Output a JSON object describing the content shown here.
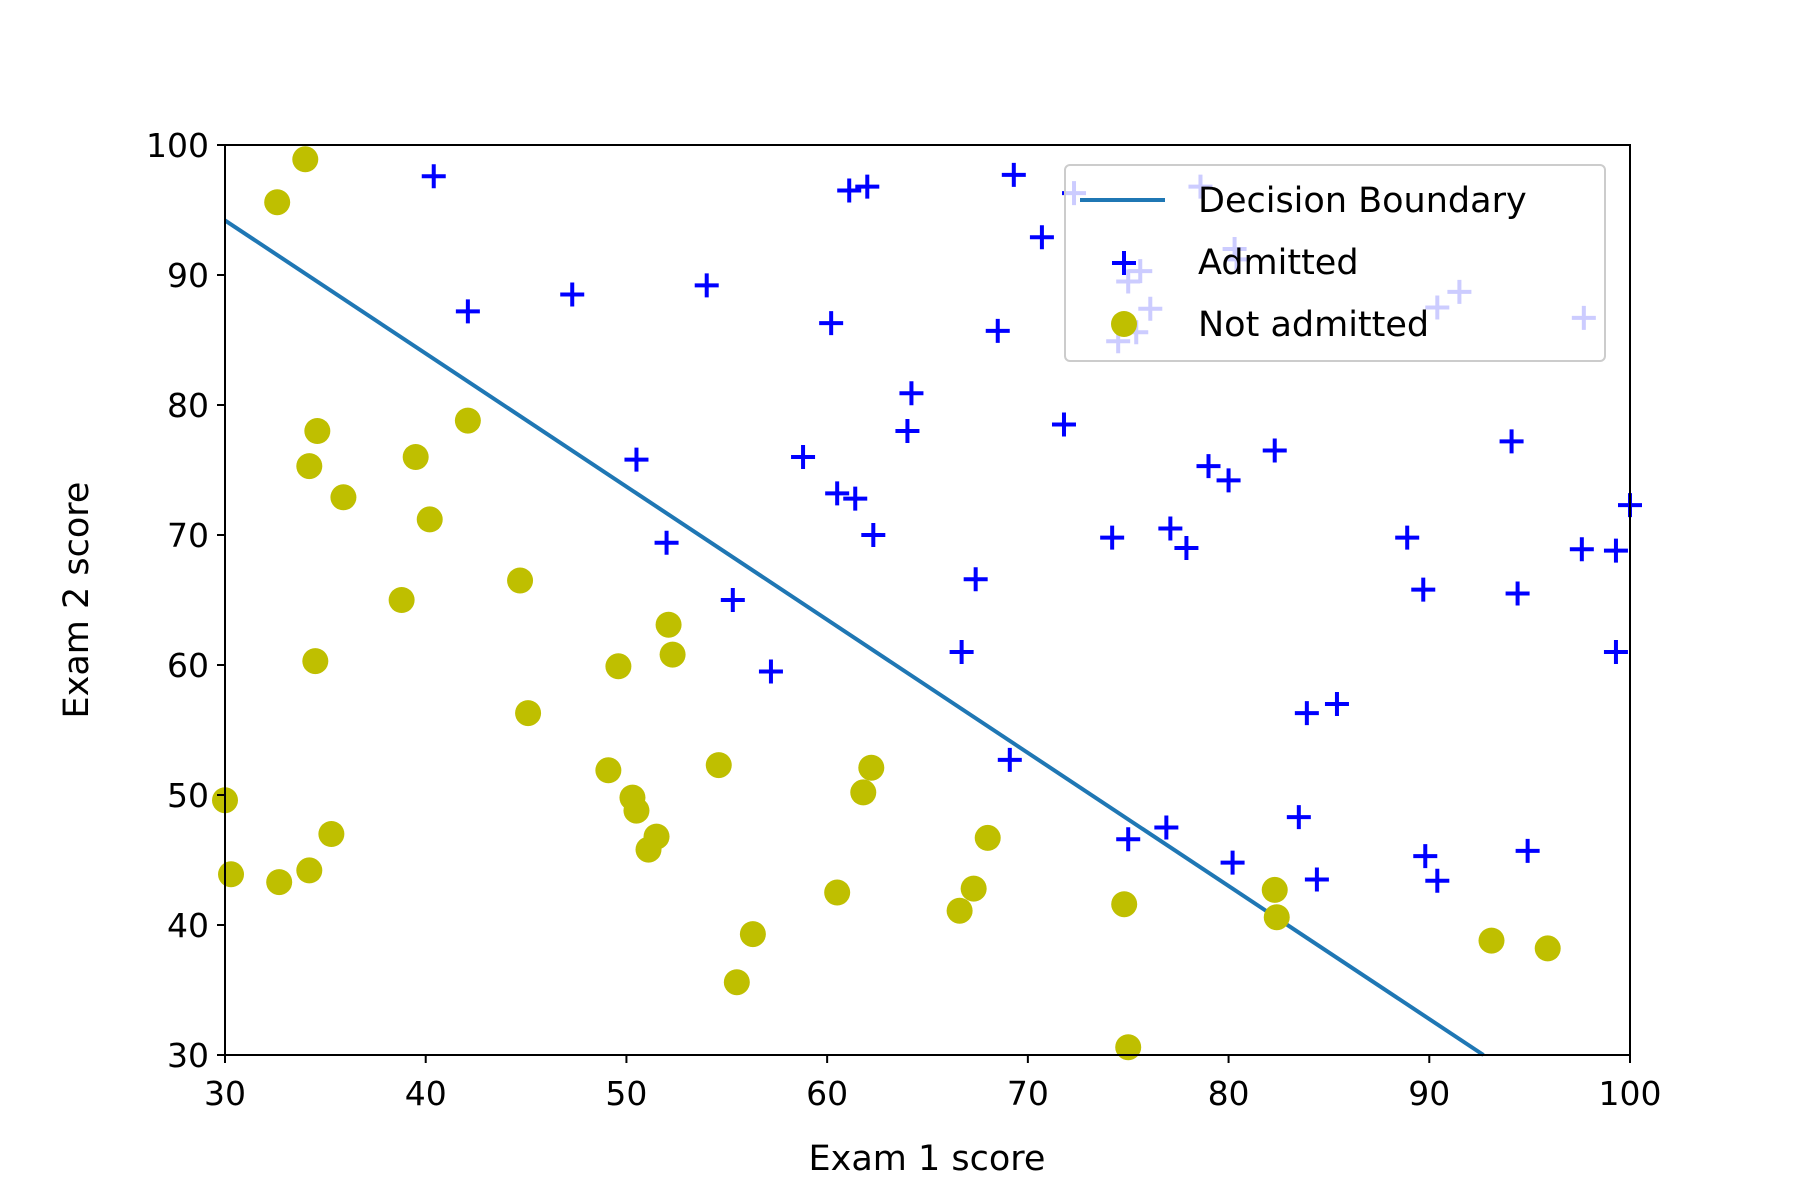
{
  "chart_data": {
    "type": "scatter",
    "xlabel": "Exam 1 score",
    "ylabel": "Exam 2 score",
    "xlim": [
      30,
      100
    ],
    "ylim": [
      30,
      100
    ],
    "xticks": [
      30,
      40,
      50,
      60,
      70,
      80,
      90,
      100
    ],
    "yticks": [
      30,
      40,
      50,
      60,
      70,
      80,
      90,
      100
    ],
    "xtick_labels": [
      "30",
      "40",
      "50",
      "60",
      "70",
      "80",
      "90",
      "100"
    ],
    "ytick_labels": [
      "30",
      "40",
      "50",
      "60",
      "70",
      "80",
      "90",
      "100"
    ],
    "grid": false,
    "legend_position": "top-right",
    "colors": {
      "boundary": "#1f77b4",
      "admitted": "#0000ff",
      "not_admitted": "#bfbf00"
    },
    "series": [
      {
        "name": "Decision Boundary",
        "type": "line",
        "points": [
          [
            30,
            94.2
          ],
          [
            92.7,
            30
          ]
        ]
      },
      {
        "name": "Admitted",
        "type": "scatter",
        "marker": "plus",
        "points": [
          [
            40.4,
            97.6
          ],
          [
            42.1,
            87.2
          ],
          [
            47.3,
            88.5
          ],
          [
            54.0,
            89.2
          ],
          [
            60.2,
            86.3
          ],
          [
            61.1,
            96.5
          ],
          [
            62.0,
            96.8
          ],
          [
            69.3,
            97.7
          ],
          [
            70.7,
            92.9
          ],
          [
            72.3,
            96.3
          ],
          [
            75.0,
            89.5
          ],
          [
            75.6,
            90.3
          ],
          [
            76.1,
            87.4
          ],
          [
            74.5,
            84.9
          ],
          [
            75.4,
            85.6
          ],
          [
            78.6,
            96.8
          ],
          [
            80.3,
            92.0
          ],
          [
            80.4,
            91.2
          ],
          [
            90.4,
            87.5
          ],
          [
            91.5,
            88.7
          ],
          [
            97.7,
            86.7
          ],
          [
            68.5,
            85.7
          ],
          [
            64.2,
            80.9
          ],
          [
            64.0,
            78.0
          ],
          [
            71.8,
            78.5
          ],
          [
            50.5,
            75.8
          ],
          [
            58.8,
            76.0
          ],
          [
            60.5,
            73.2
          ],
          [
            61.4,
            72.8
          ],
          [
            62.3,
            70.0
          ],
          [
            52.0,
            69.4
          ],
          [
            55.3,
            65.0
          ],
          [
            57.2,
            59.5
          ],
          [
            66.7,
            61.0
          ],
          [
            67.4,
            66.6
          ],
          [
            74.2,
            69.8
          ],
          [
            77.1,
            70.5
          ],
          [
            77.9,
            69.0
          ],
          [
            79.0,
            75.3
          ],
          [
            80.0,
            74.2
          ],
          [
            82.3,
            76.5
          ],
          [
            94.1,
            77.2
          ],
          [
            88.9,
            69.8
          ],
          [
            89.7,
            65.8
          ],
          [
            94.4,
            65.5
          ],
          [
            97.6,
            68.9
          ],
          [
            99.3,
            68.8
          ],
          [
            100.0,
            72.3
          ],
          [
            99.3,
            61.0
          ],
          [
            69.1,
            52.7
          ],
          [
            75.0,
            46.6
          ],
          [
            76.9,
            47.5
          ],
          [
            80.2,
            44.8
          ],
          [
            83.5,
            48.3
          ],
          [
            84.4,
            43.5
          ],
          [
            83.9,
            56.3
          ],
          [
            85.4,
            57.0
          ],
          [
            89.8,
            45.3
          ],
          [
            90.4,
            43.4
          ],
          [
            94.9,
            45.7
          ]
        ]
      },
      {
        "name": "Not admitted",
        "type": "scatter",
        "marker": "circle",
        "points": [
          [
            34.0,
            98.9
          ],
          [
            32.6,
            95.6
          ],
          [
            42.1,
            78.8
          ],
          [
            34.6,
            78.0
          ],
          [
            34.2,
            75.3
          ],
          [
            39.5,
            76.0
          ],
          [
            35.9,
            72.9
          ],
          [
            40.2,
            71.2
          ],
          [
            38.8,
            65.0
          ],
          [
            44.7,
            66.5
          ],
          [
            34.5,
            60.3
          ],
          [
            45.1,
            56.3
          ],
          [
            49.6,
            59.9
          ],
          [
            52.1,
            63.1
          ],
          [
            52.3,
            60.8
          ],
          [
            30.0,
            49.6
          ],
          [
            30.3,
            43.9
          ],
          [
            32.7,
            43.3
          ],
          [
            34.2,
            44.2
          ],
          [
            35.3,
            47.0
          ],
          [
            49.1,
            51.9
          ],
          [
            50.3,
            49.8
          ],
          [
            50.5,
            48.8
          ],
          [
            51.5,
            46.8
          ],
          [
            51.1,
            45.8
          ],
          [
            54.6,
            52.3
          ],
          [
            61.8,
            50.2
          ],
          [
            62.2,
            52.1
          ],
          [
            60.5,
            42.5
          ],
          [
            56.3,
            39.3
          ],
          [
            55.5,
            35.6
          ],
          [
            66.6,
            41.1
          ],
          [
            67.3,
            42.8
          ],
          [
            68.0,
            46.7
          ],
          [
            74.8,
            41.6
          ],
          [
            75.0,
            30.6
          ],
          [
            82.3,
            42.7
          ],
          [
            82.4,
            40.6
          ],
          [
            93.1,
            38.8
          ],
          [
            95.9,
            38.2
          ]
        ]
      }
    ]
  }
}
